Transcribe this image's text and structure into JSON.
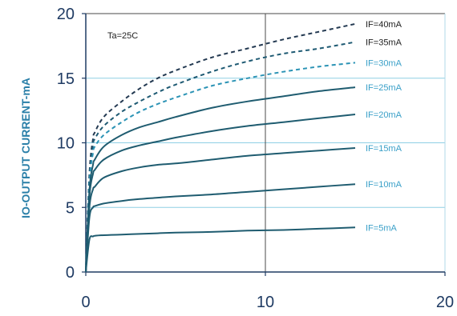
{
  "chart_data": {
    "type": "line",
    "title": "",
    "xlabel": "",
    "ylabel": "IO-OUTPUT CURRENT-mA",
    "annotation": "Ta=25C",
    "xlim": [
      0,
      20
    ],
    "ylim": [
      0,
      20
    ],
    "x_ticks": [
      "0",
      "10",
      "20"
    ],
    "y_ticks": [
      "0",
      "5",
      "10",
      "15",
      "20"
    ],
    "grid": true,
    "x": [
      0,
      0.2,
      0.4,
      0.5,
      1,
      2,
      3,
      4,
      5,
      7,
      9,
      11,
      13,
      15
    ],
    "series": [
      {
        "name": "IF=40mA",
        "style": "dashed",
        "color": "#243a52",
        "values": [
          0,
          7.6,
          10.3,
          10.8,
          12.0,
          13.2,
          14.2,
          15.0,
          15.6,
          16.6,
          17.3,
          18.0,
          18.6,
          19.2
        ]
      },
      {
        "name": "IF=35mA",
        "style": "dashed",
        "color": "#1e5a73",
        "values": [
          0,
          7.2,
          9.8,
          10.3,
          11.3,
          12.4,
          13.2,
          13.9,
          14.5,
          15.5,
          16.3,
          16.9,
          17.3,
          17.8
        ]
      },
      {
        "name": "IF=30mA",
        "style": "dashed",
        "color": "#2b93b5",
        "values": [
          0,
          6.9,
          9.2,
          9.7,
          10.6,
          11.6,
          12.4,
          13.0,
          13.5,
          14.4,
          15.0,
          15.5,
          15.9,
          16.2
        ]
      },
      {
        "name": "IF=25mA",
        "style": "solid",
        "color": "#1f5c70",
        "values": [
          0,
          6.3,
          8.3,
          8.7,
          9.7,
          10.6,
          11.2,
          11.6,
          12.0,
          12.7,
          13.2,
          13.6,
          14.0,
          14.3
        ]
      },
      {
        "name": "IF=20mA",
        "style": "solid",
        "color": "#1f5c70",
        "values": [
          0,
          5.8,
          7.6,
          7.9,
          8.7,
          9.4,
          9.8,
          10.1,
          10.4,
          10.9,
          11.3,
          11.6,
          11.9,
          12.2
        ]
      },
      {
        "name": "IF=15mA",
        "style": "solid",
        "color": "#1f5c70",
        "values": [
          0,
          5.0,
          6.4,
          6.6,
          7.3,
          7.8,
          8.1,
          8.3,
          8.4,
          8.7,
          9.0,
          9.2,
          9.4,
          9.6
        ]
      },
      {
        "name": "IF=10mA",
        "style": "solid",
        "color": "#1f5c70",
        "values": [
          0,
          4.2,
          5.0,
          5.1,
          5.3,
          5.5,
          5.65,
          5.75,
          5.85,
          6.0,
          6.2,
          6.4,
          6.6,
          6.8
        ]
      },
      {
        "name": "IF=5mA",
        "style": "solid",
        "color": "#1f5c70",
        "values": [
          0,
          2.5,
          2.75,
          2.8,
          2.85,
          2.9,
          2.95,
          3.0,
          3.05,
          3.1,
          3.2,
          3.25,
          3.35,
          3.45
        ]
      }
    ],
    "legend_colors": {
      "IF=40mA": "#222222",
      "IF=35mA": "#222222",
      "IF=30mA": "#3aa0c8",
      "IF=25mA": "#3aa0c8",
      "IF=20mA": "#3aa0c8",
      "IF=15mA": "#3aa0c8",
      "IF=10mA": "#3aa0c8",
      "IF=5mA": "#3aa0c8"
    },
    "colors": {
      "axis": "#1f3b63",
      "grid_major": "#4a4a4a",
      "grid_minor": "#8fcfe4",
      "tick_text": "#1f3b63",
      "ylabel": "#2a7fa8"
    }
  }
}
